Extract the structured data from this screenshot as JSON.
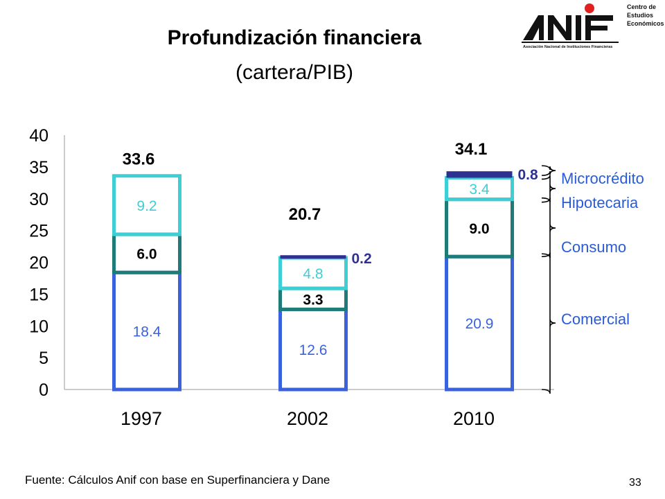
{
  "title": "Profundización financiera",
  "subtitle": "(cartera/PIB)",
  "logo": {
    "name": "ANIF",
    "tagline": "Asociación Nacional de Instituciones Financieras",
    "side_lines": [
      "Centro de",
      "Estudios",
      "Económicos"
    ]
  },
  "source": "Fuente: Cálculos Anif con base en Superfinanciera y Dane",
  "page_number": "33",
  "colors": {
    "comercial": "#3a62dc",
    "consumo": "#1d7b78",
    "hipotecaria": "#3ecfd4",
    "microcredito": "#2e3191",
    "label_blue": "#3a62dc",
    "legend_blue": "#2a5bd7"
  },
  "chart_data": {
    "type": "bar",
    "stacked": true,
    "categories": [
      "1997",
      "2002",
      "2010"
    ],
    "ylim": [
      0,
      40
    ],
    "yticks": [
      "0",
      "5",
      "10",
      "15",
      "20",
      "25",
      "30",
      "35",
      "40"
    ],
    "totals": [
      "33.6",
      "20.7",
      "34.1"
    ],
    "series": [
      {
        "name": "Comercial",
        "values": [
          18.4,
          12.6,
          20.9
        ],
        "labels": [
          "18.4",
          "12.6",
          "20.9"
        ]
      },
      {
        "name": "Consumo",
        "values": [
          6.0,
          3.3,
          9.0
        ],
        "labels": [
          "6.0",
          "3.3",
          "9.0"
        ]
      },
      {
        "name": "Hipotecaria",
        "values": [
          9.2,
          4.8,
          3.4
        ],
        "labels": [
          "9.2",
          "4.8",
          "3.4"
        ]
      },
      {
        "name": "Microcrédito",
        "values": [
          0,
          0.2,
          0.8
        ],
        "labels": [
          "",
          "0.2",
          "0.8"
        ]
      }
    ],
    "legend": [
      "Microcrédito",
      "Hipotecaria",
      "Consumo",
      "Comercial"
    ],
    "legend_placement": "right"
  }
}
